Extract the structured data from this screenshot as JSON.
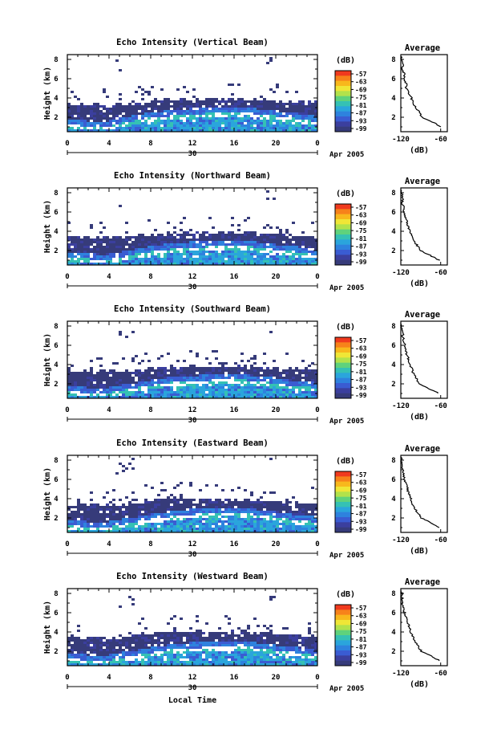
{
  "chart_data": {
    "type": "heatmap",
    "xlabel": "Local Time",
    "date_label": "Apr 2005",
    "day_label": "30",
    "x_ticks": [
      "0",
      "4",
      "8",
      "12",
      "16",
      "20",
      "0"
    ],
    "xlim": [
      0,
      24
    ],
    "ylabel": "Height (km)",
    "y_ticks": [
      "2",
      "4",
      "6",
      "8"
    ],
    "ylim": [
      0.5,
      8.5
    ],
    "colorbar": {
      "unit": "(dB)",
      "ticks": [
        "-57",
        "-63",
        "-69",
        "-75",
        "-81",
        "-87",
        "-93",
        "-99"
      ],
      "colors": [
        "#f03a1e",
        "#f7821a",
        "#f8b81c",
        "#f0e636",
        "#b2e24b",
        "#5fd27c",
        "#35c1b4",
        "#2aa5dc",
        "#2e82de",
        "#3a5cd2",
        "#3b3f9e",
        "#363b7a"
      ]
    },
    "profile": {
      "title": "Average",
      "xlabel": "(dB)",
      "x_ticks": [
        "-120",
        "-60"
      ],
      "xlim": [
        -120,
        -50
      ],
      "y_ticks": [
        "2",
        "4",
        "6",
        "8"
      ],
      "ylim": [
        0.5,
        8.5
      ]
    },
    "panels": [
      {
        "title": "Echo Intensity (Vertical Beam)",
        "top_km": [
          3.4,
          3.4,
          3.3,
          3.3,
          3.2,
          3.3,
          3.4,
          3.5,
          3.6,
          3.7,
          3.8,
          3.9,
          3.9,
          3.9,
          3.9,
          3.8,
          3.8,
          3.9,
          3.9,
          3.8,
          3.7,
          3.7,
          3.6,
          3.5,
          3.6
        ],
        "bright_km": [
          1.0,
          0.9,
          0.8,
          0.8,
          0.8,
          1.1,
          1.3,
          1.5,
          1.7,
          1.8,
          1.9,
          2.0,
          2.1,
          2.1,
          2.2,
          2.2,
          2.3,
          2.3,
          2.1,
          2.0,
          1.9,
          1.7,
          1.6,
          1.4,
          1.3
        ],
        "avg_profile": {
          "height_km": [
            1.0,
            1.5,
            2.0,
            2.5,
            3.0,
            3.5,
            4.0,
            4.5,
            5.0,
            5.5,
            6.0,
            6.5,
            7.0,
            7.5,
            8.0,
            8.3
          ],
          "db": [
            -60,
            -72,
            -88,
            -92,
            -98,
            -102,
            -104,
            -108,
            -112,
            -112,
            -115,
            -115,
            -118,
            -116,
            -119,
            -120
          ]
        }
      },
      {
        "title": "Echo Intensity (Northward Beam)",
        "top_km": [
          3.5,
          3.4,
          3.4,
          3.3,
          3.3,
          3.4,
          3.4,
          3.6,
          3.7,
          3.8,
          3.9,
          3.9,
          4.0,
          3.9,
          3.9,
          3.8,
          3.8,
          3.9,
          3.8,
          3.7,
          3.7,
          3.6,
          3.6,
          3.5,
          3.5
        ],
        "bright_km": [
          1.0,
          0.9,
          0.9,
          0.8,
          0.8,
          1.0,
          1.2,
          1.5,
          1.6,
          1.8,
          1.9,
          2.0,
          2.1,
          2.1,
          2.2,
          2.2,
          2.2,
          2.2,
          2.1,
          2.0,
          1.8,
          1.7,
          1.6,
          1.4,
          1.3
        ],
        "avg_profile": {
          "height_km": [
            1.0,
            1.5,
            2.0,
            2.5,
            3.0,
            3.5,
            4.0,
            4.5,
            5.0,
            5.5,
            6.0,
            6.5,
            7.0,
            7.5,
            8.0,
            8.3
          ],
          "db": [
            -62,
            -76,
            -90,
            -95,
            -100,
            -104,
            -106,
            -109,
            -111,
            -113,
            -115,
            -116,
            -118,
            -117,
            -119,
            -120
          ]
        }
      },
      {
        "title": "Echo Intensity (Southward Beam)",
        "top_km": [
          3.4,
          3.3,
          3.3,
          3.2,
          3.3,
          3.3,
          3.4,
          3.5,
          3.6,
          3.7,
          3.8,
          3.8,
          3.9,
          3.9,
          3.8,
          3.8,
          3.8,
          3.8,
          3.7,
          3.7,
          3.6,
          3.6,
          3.5,
          3.5,
          3.4
        ],
        "bright_km": [
          1.0,
          0.9,
          0.8,
          0.8,
          0.8,
          1.0,
          1.2,
          1.4,
          1.6,
          1.7,
          1.9,
          2.0,
          2.0,
          2.1,
          2.1,
          2.2,
          2.2,
          2.2,
          2.0,
          1.9,
          1.8,
          1.6,
          1.5,
          1.4,
          1.3
        ],
        "avg_profile": {
          "height_km": [
            1.0,
            1.5,
            2.0,
            2.5,
            3.0,
            3.5,
            4.0,
            4.5,
            5.0,
            5.5,
            6.0,
            6.5,
            7.0,
            7.5,
            8.0,
            8.3
          ],
          "db": [
            -63,
            -78,
            -92,
            -96,
            -101,
            -103,
            -106,
            -108,
            -111,
            -112,
            -114,
            -116,
            -117,
            -117,
            -119,
            -120
          ]
        }
      },
      {
        "title": "Echo Intensity (Eastward Beam)",
        "top_km": [
          3.5,
          3.4,
          3.4,
          3.3,
          3.3,
          3.4,
          3.5,
          3.6,
          3.8,
          3.9,
          4.0,
          4.0,
          4.0,
          4.0,
          3.9,
          3.9,
          3.9,
          3.9,
          3.8,
          3.8,
          3.7,
          3.7,
          3.6,
          3.6,
          3.5
        ],
        "bright_km": [
          1.0,
          0.9,
          0.8,
          0.8,
          0.8,
          1.0,
          1.2,
          1.4,
          1.6,
          1.7,
          1.9,
          2.0,
          2.1,
          2.2,
          2.2,
          2.3,
          2.3,
          2.2,
          2.1,
          2.0,
          1.8,
          1.7,
          1.5,
          1.4,
          1.3
        ],
        "avg_profile": {
          "height_km": [
            1.0,
            1.5,
            2.0,
            2.5,
            3.0,
            3.5,
            4.0,
            4.5,
            5.0,
            5.5,
            6.0,
            6.5,
            7.0,
            7.5,
            8.0,
            8.3
          ],
          "db": [
            -62,
            -75,
            -89,
            -94,
            -99,
            -103,
            -105,
            -108,
            -110,
            -112,
            -115,
            -116,
            -117,
            -118,
            -119,
            -120
          ]
        }
      },
      {
        "title": "Echo Intensity (Westward Beam)",
        "top_km": [
          3.6,
          3.5,
          3.4,
          3.4,
          3.3,
          3.4,
          3.5,
          3.7,
          3.8,
          3.9,
          4.0,
          4.1,
          4.1,
          4.1,
          4.0,
          4.0,
          4.0,
          4.0,
          3.9,
          3.9,
          3.8,
          3.8,
          3.7,
          3.7,
          3.6
        ],
        "bright_km": [
          1.0,
          0.9,
          0.8,
          0.8,
          0.8,
          1.0,
          1.2,
          1.4,
          1.6,
          1.7,
          1.9,
          2.0,
          2.1,
          2.1,
          2.2,
          2.2,
          2.3,
          2.2,
          2.1,
          2.0,
          1.8,
          1.7,
          1.6,
          1.4,
          1.3
        ],
        "avg_profile": {
          "height_km": [
            1.0,
            1.5,
            2.0,
            2.5,
            3.0,
            3.5,
            4.0,
            4.5,
            5.0,
            5.5,
            6.0,
            6.5,
            7.0,
            7.5,
            8.0,
            8.3
          ],
          "db": [
            -61,
            -74,
            -89,
            -94,
            -99,
            -102,
            -105,
            -107,
            -110,
            -112,
            -114,
            -116,
            -118,
            -118,
            -119,
            -120
          ]
        }
      }
    ]
  }
}
